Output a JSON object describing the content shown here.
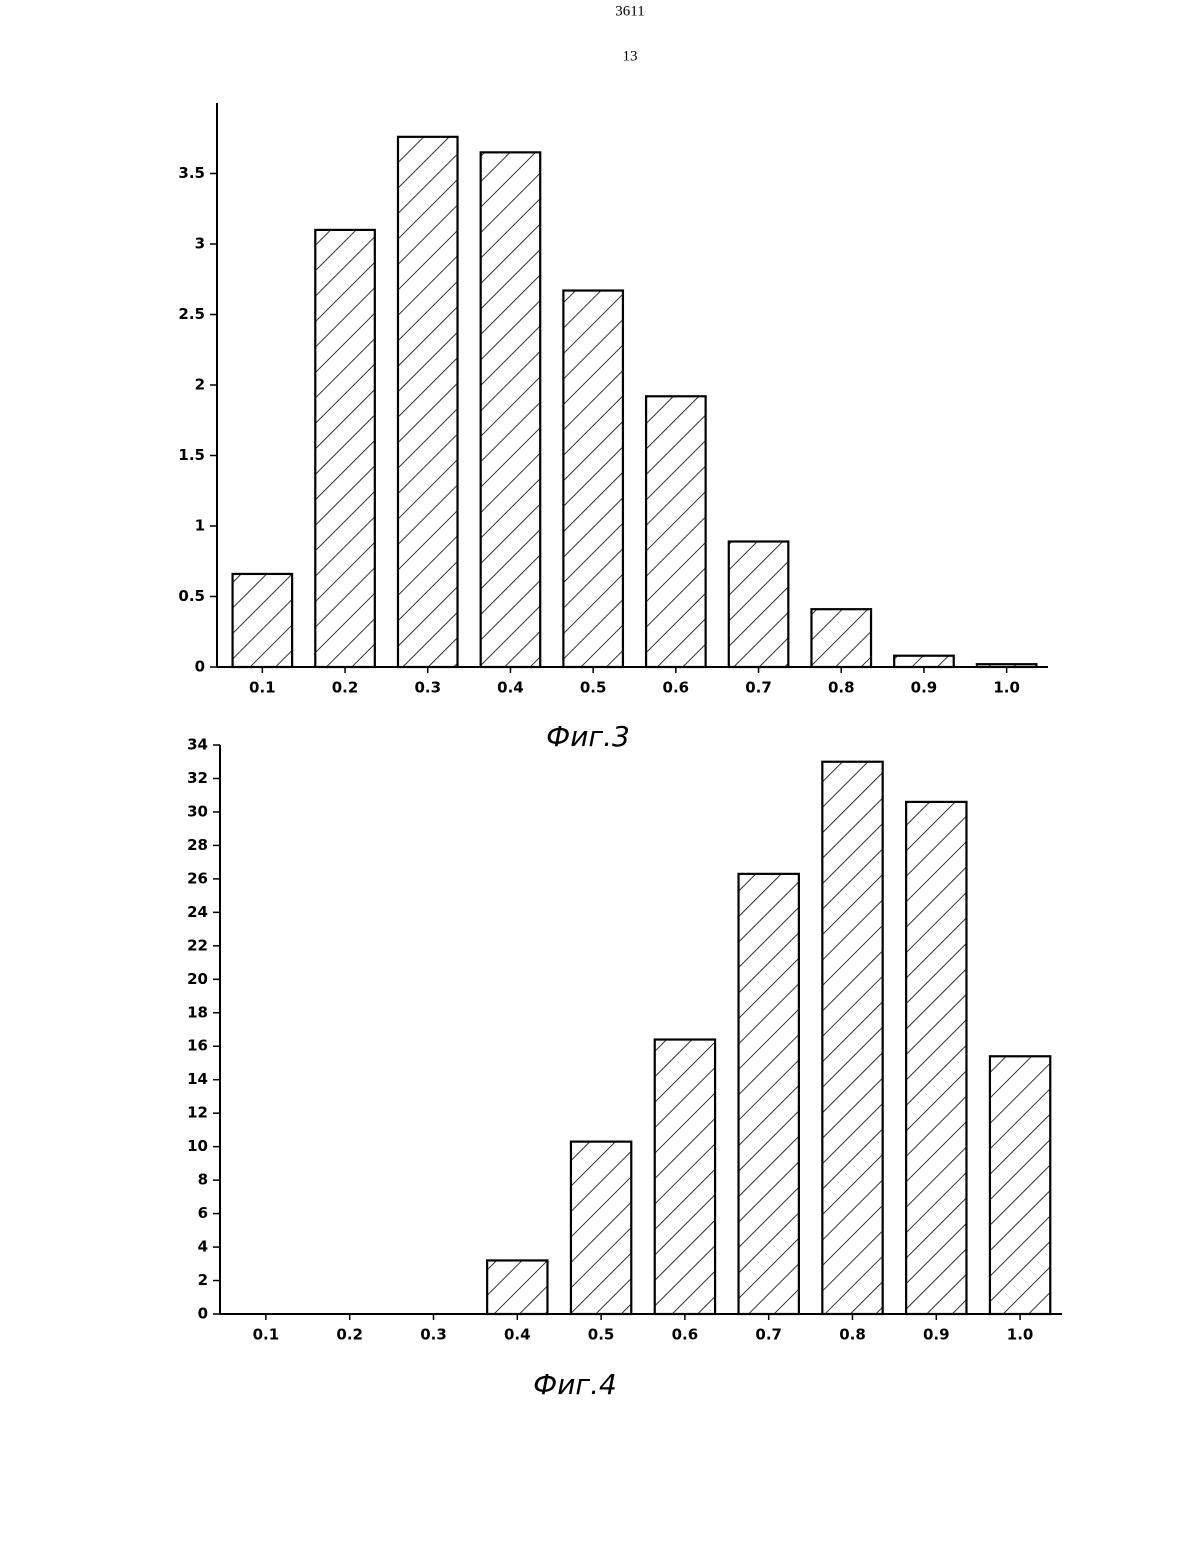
{
  "header": {
    "number": "3611",
    "page": "13"
  },
  "chart_data": [
    {
      "type": "bar",
      "caption": "Фиг.3",
      "categories": [
        "0.1",
        "0.2",
        "0.3",
        "0.4",
        "0.5",
        "0.6",
        "0.7",
        "0.8",
        "0.9",
        "1.0"
      ],
      "values": [
        0.66,
        3.1,
        3.76,
        3.65,
        2.67,
        1.92,
        0.89,
        0.41,
        0.08,
        0.02
      ],
      "color": "#000000",
      "ylim": [
        0,
        4
      ],
      "yticks": [
        0,
        0.5,
        1,
        1.5,
        2,
        2.5,
        3,
        3.5
      ]
    },
    {
      "type": "bar",
      "caption": "Фиг.4",
      "categories": [
        "0.1",
        "0.2",
        "0.3",
        "0.4",
        "0.5",
        "0.6",
        "0.7",
        "0.8",
        "0.9",
        "1.0"
      ],
      "values": [
        0,
        0,
        0,
        3.2,
        10.3,
        16.4,
        26.3,
        33.0,
        30.6,
        15.4
      ],
      "color": "#000000",
      "ylim": [
        0,
        34
      ],
      "yticks": [
        0,
        2,
        4,
        6,
        8,
        10,
        12,
        14,
        16,
        18,
        20,
        22,
        24,
        26,
        28,
        30,
        32,
        34
      ]
    }
  ]
}
